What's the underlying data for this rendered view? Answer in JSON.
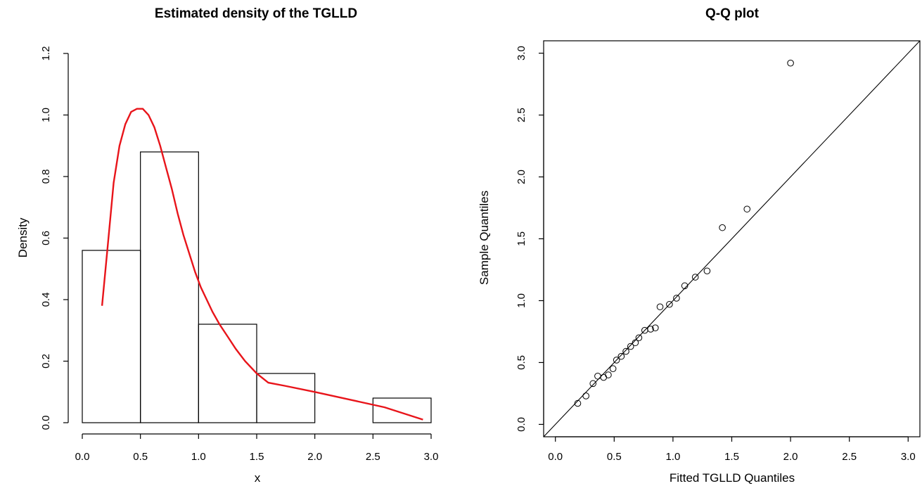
{
  "chart_data": [
    {
      "type": "bar",
      "subtype": "histogram-with-density",
      "title": "Estimated density of the TGLLD",
      "xlabel": "x",
      "ylabel": "Density",
      "xlim": [
        0,
        3
      ],
      "ylim": [
        0,
        1.2
      ],
      "x_ticks": [
        "0.0",
        "0.5",
        "1.0",
        "1.5",
        "2.0",
        "2.5",
        "3.0"
      ],
      "y_ticks": [
        "0.0",
        "0.2",
        "0.4",
        "0.6",
        "0.8",
        "1.0",
        "1.2"
      ],
      "bins": [
        {
          "from": 0.0,
          "to": 0.5,
          "density": 0.56
        },
        {
          "from": 0.5,
          "to": 1.0,
          "density": 0.88
        },
        {
          "from": 1.0,
          "to": 1.5,
          "density": 0.32
        },
        {
          "from": 1.5,
          "to": 2.0,
          "density": 0.16
        },
        {
          "from": 2.0,
          "to": 2.5,
          "density": 0.0
        },
        {
          "from": 2.5,
          "to": 3.0,
          "density": 0.08
        }
      ],
      "density_curve": {
        "color": "#e8141a",
        "x": [
          0.17,
          0.22,
          0.27,
          0.32,
          0.37,
          0.42,
          0.47,
          0.52,
          0.57,
          0.62,
          0.67,
          0.72,
          0.77,
          0.82,
          0.87,
          0.92,
          0.97,
          1.02,
          1.07,
          1.12,
          1.18,
          1.25,
          1.32,
          1.4,
          1.5,
          1.6,
          1.74,
          2.0,
          2.3,
          2.6,
          2.93
        ],
        "y": [
          0.38,
          0.58,
          0.78,
          0.9,
          0.97,
          1.01,
          1.02,
          1.02,
          1.0,
          0.96,
          0.9,
          0.83,
          0.76,
          0.68,
          0.61,
          0.55,
          0.49,
          0.44,
          0.4,
          0.36,
          0.32,
          0.28,
          0.24,
          0.2,
          0.16,
          0.13,
          0.12,
          0.1,
          0.075,
          0.05,
          0.01
        ]
      }
    },
    {
      "type": "scatter",
      "subtype": "qq-plot",
      "title": "Q-Q plot",
      "xlabel": "Fitted TGLLD Quantiles",
      "ylabel": "Sample Quantiles",
      "xlim": [
        -0.1,
        3.1
      ],
      "ylim": [
        -0.1,
        3.1
      ],
      "x_ticks": [
        "0.0",
        "0.5",
        "1.0",
        "1.5",
        "2.0",
        "2.5",
        "3.0"
      ],
      "y_ticks": [
        "0.0",
        "0.5",
        "1.0",
        "1.5",
        "2.0",
        "2.5",
        "3.0"
      ],
      "reference_line": {
        "intercept": 0,
        "slope": 1
      },
      "points": {
        "x": [
          0.19,
          0.26,
          0.32,
          0.36,
          0.41,
          0.45,
          0.49,
          0.52,
          0.56,
          0.6,
          0.64,
          0.68,
          0.71,
          0.76,
          0.81,
          0.85,
          0.89,
          0.97,
          1.03,
          1.1,
          1.19,
          1.29,
          1.42,
          1.63,
          2.0
        ],
        "y": [
          0.17,
          0.23,
          0.33,
          0.39,
          0.38,
          0.4,
          0.45,
          0.52,
          0.55,
          0.59,
          0.63,
          0.66,
          0.7,
          0.76,
          0.77,
          0.78,
          0.95,
          0.97,
          1.02,
          1.12,
          1.19,
          1.24,
          1.59,
          1.74,
          2.92
        ]
      }
    }
  ]
}
